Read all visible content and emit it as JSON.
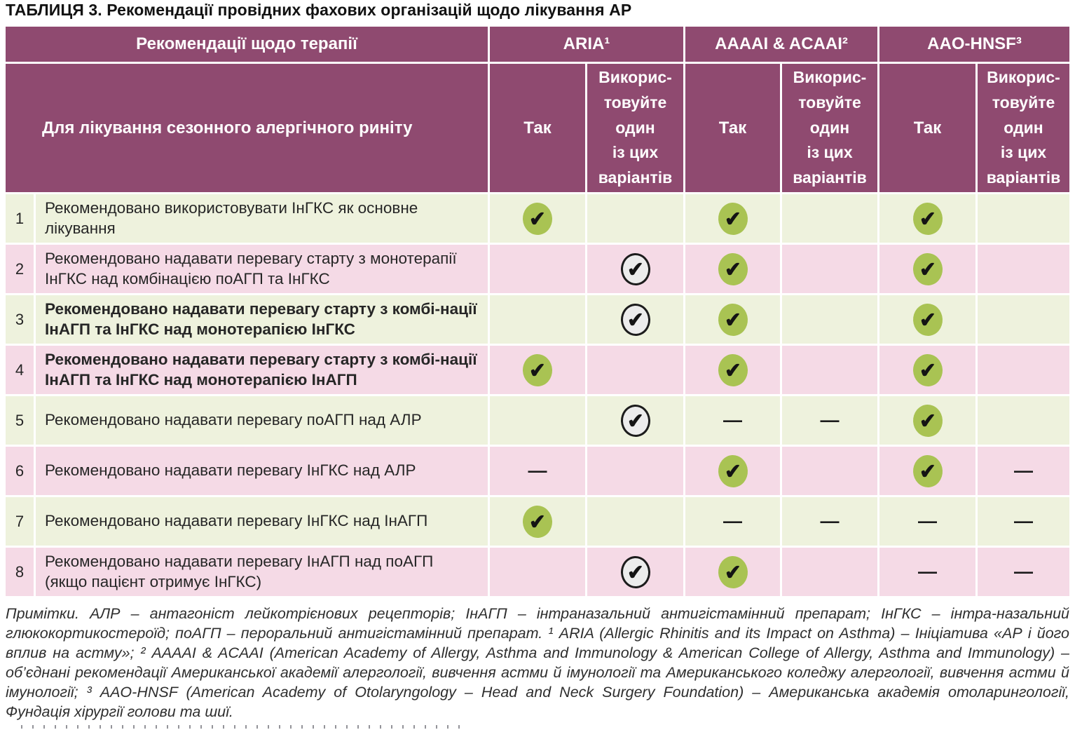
{
  "title": "ТАБЛИЦЯ 3. Рекомендації провідних фахових організацій щодо лікування АР",
  "table": {
    "col_header_left": "Рекомендації щодо терапії",
    "org_headers": [
      "ARIA¹",
      "AAAAI & ACAAI²",
      "AAO-HNSF³"
    ],
    "row_header_left": "Для лікування сезонного алергічного риніту",
    "sub_headers": {
      "yes": "Так",
      "use_one": "Викорис-\nтовуйте\nодин\nіз цих\nваріантів"
    },
    "rows": [
      {
        "num": "1",
        "text": "Рекомендовано використовувати ІнГКС як основне лікування",
        "bold": false,
        "marks": [
          "check-green",
          "",
          "check-green",
          "",
          "check-green",
          ""
        ]
      },
      {
        "num": "2",
        "text": "Рекомендовано надавати перевагу старту з монотерапії ІнГКС над комбінацією поАГП та ІнГКС",
        "bold": false,
        "marks": [
          "",
          "check-outline",
          "check-green",
          "",
          "check-green",
          ""
        ]
      },
      {
        "num": "3",
        "text": "Рекомендовано надавати перевагу старту з комбі-нації ІнАГП та ІнГКС над монотерапією ІнГКС",
        "bold": true,
        "marks": [
          "",
          "check-outline",
          "check-green",
          "",
          "check-green",
          ""
        ]
      },
      {
        "num": "4",
        "text": "Рекомендовано надавати перевагу старту з комбі-нації ІнАГП та ІнГКС над монотерапією ІнАГП",
        "bold": true,
        "marks": [
          "check-green",
          "",
          "check-green",
          "",
          "check-green",
          ""
        ]
      },
      {
        "num": "5",
        "text": "Рекомендовано надавати перевагу поАГП над АЛР",
        "bold": false,
        "marks": [
          "",
          "check-outline",
          "dash",
          "dash",
          "check-green",
          ""
        ]
      },
      {
        "num": "6",
        "text": "Рекомендовано надавати перевагу ІнГКС над АЛР",
        "bold": false,
        "marks": [
          "dash",
          "",
          "check-green",
          "",
          "check-green",
          "dash"
        ]
      },
      {
        "num": "7",
        "text": "Рекомендовано надавати перевагу ІнГКС над ІнАГП",
        "bold": false,
        "marks": [
          "check-green",
          "",
          "dash",
          "dash",
          "dash",
          "dash"
        ]
      },
      {
        "num": "8",
        "text": "Рекомендовано надавати перевагу ІнАГП над поАГП (якщо пацієнт отримує ІнГКС)",
        "bold": false,
        "marks": [
          "",
          "check-outline",
          "check-green",
          "",
          "dash",
          "dash"
        ]
      }
    ]
  },
  "icons": {
    "check": "✔",
    "dash": "—"
  },
  "footnote": "Примітки. АЛР – антагоніст лейкотрієнових рецепторів; ІнАГП – інтраназальний антигістамінний препарат; ІнГКС – інтра-назальний глюкокортикостероїд; поАГП – пероральний антигістамінний препарат. ¹ ARIA (Allergic Rhinitis and its Impact on Asthma) – Ініціатива «АР і його вплив на астму»; ² AAAAI & ACAAI (American Academy of Allergy, Asthma and Immunology & American College of Allergy, Asthma and Immunology) – об’єднані рекомендації Американської академії алергології, вивчення астми й імунології та Американського коледжу алергології, вивчення астми й імунології; ³ AAO-HNSF (American Academy of Otolaryngology – Head and Neck Surgery Foundation) – Американська академія отоларингології, Фундація хірургії голови та шиї.",
  "colors": {
    "header_purple": "#8f4a70",
    "row_green": "#eef2dd",
    "row_pink": "#f5dae6",
    "check_green": "#a9c353",
    "check_outline_bg": "#ececec",
    "text_dark": "#262626"
  }
}
